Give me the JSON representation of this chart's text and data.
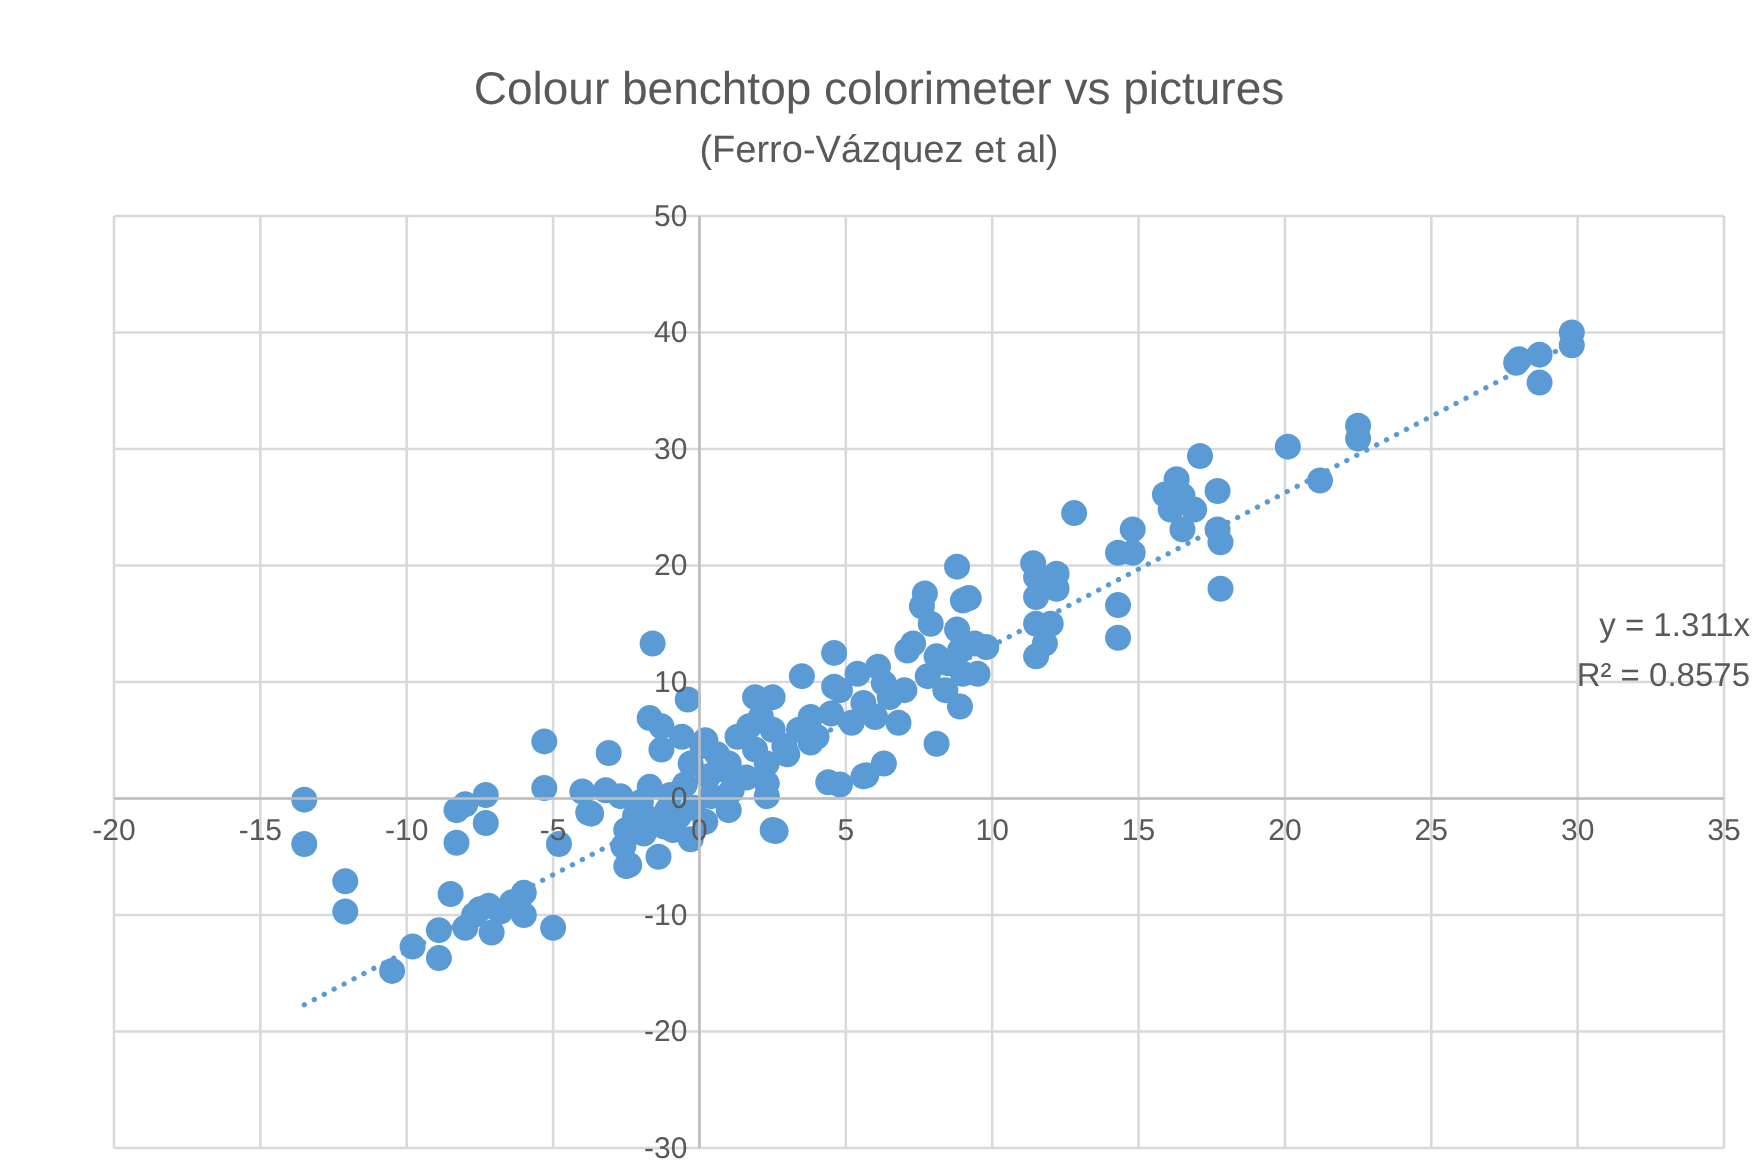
{
  "chart_data": {
    "type": "scatter",
    "title": "Colour benchtop colorimeter vs pictures",
    "subtitle": "(Ferro-Vázquez et al)",
    "xlim": [
      -20,
      35
    ],
    "xticks": [
      -20,
      -15,
      -10,
      -5,
      0,
      5,
      10,
      15,
      20,
      25,
      30,
      35
    ],
    "ylim": [
      -30,
      50
    ],
    "yticks": [
      -30,
      -20,
      -10,
      0,
      10,
      20,
      30,
      40,
      50
    ],
    "grid": true,
    "marker": "circle",
    "annotations": [
      "y = 1.311x",
      "R² = 0.8575"
    ],
    "series": [
      {
        "color": "#5b9bd5",
        "x": [
          -13.5,
          -13.5,
          -12.1,
          -12.1,
          -10.5,
          -9.8,
          -8.9,
          -8.9,
          -8.5,
          -8.3,
          -8.3,
          -8.0,
          -7.3,
          -7.3,
          -7.5,
          -7.1,
          -6.8,
          -6.4,
          -6.0,
          -6.0,
          -8.0,
          -5.0,
          -5.3,
          -5.3,
          -4.8,
          -3.1,
          -4.0,
          -3.2,
          -3.7,
          -2.7,
          -2.5,
          -1.6,
          -0.4,
          -1.7,
          -1.3,
          -0.6,
          -1.3,
          -1.7,
          -1.4,
          -2.6,
          -2.2,
          -1.9,
          -0.9,
          -1.1,
          0.2,
          1.0,
          1.3,
          -7.7,
          -7.2,
          0.1,
          -0.3,
          0.3,
          0.8,
          1.1,
          1.0,
          0.4,
          -0.7,
          -1.2,
          -2.5,
          -3.8,
          1.9,
          2.5,
          2.1,
          2.5,
          1.9,
          2.3,
          2.3,
          2.3,
          2.5,
          2.9,
          3.5,
          3.8,
          3.4,
          4.0,
          4.6,
          4.6,
          4.8,
          4.5,
          5.2,
          4.4,
          4.8,
          5.6,
          6.3,
          5.4,
          6.1,
          6.3,
          5.6,
          6.0,
          6.5,
          6.8,
          7.0,
          7.1,
          7.3,
          7.7,
          7.6,
          7.9,
          8.1,
          7.8,
          8.5,
          8.4,
          8.1,
          8.8,
          9.0,
          8.8,
          8.9,
          9.0,
          8.9,
          9.4,
          9.8,
          9.5,
          9.2,
          -0.2,
          -0.5,
          -2.0,
          -1.5,
          -0.3,
          0.6,
          1.6,
          -1.0,
          0.2,
          -2.4,
          2.6,
          5.7,
          3.0,
          3.8,
          1.7,
          11.4,
          11.5,
          12.2,
          11.5,
          12.0,
          11.5,
          11.5,
          11.8,
          12.8,
          12.2,
          14.3,
          14.8,
          14.8,
          14.3,
          14.3,
          15.9,
          16.3,
          16.1,
          16.5,
          16.9,
          16.5,
          17.1,
          17.7,
          17.7,
          17.8,
          17.8,
          20.1,
          21.2,
          22.5,
          22.5,
          27.9,
          28.0,
          28.7,
          28.7,
          29.8,
          29.8
        ],
        "values": [
          -0.1,
          -3.9,
          -7.1,
          -9.7,
          -14.8,
          -12.7,
          -13.7,
          -11.3,
          -8.2,
          -3.8,
          -1.0,
          -0.5,
          0.3,
          -2.1,
          -9.5,
          -11.5,
          -9.7,
          -8.9,
          -8.1,
          -10.0,
          -11.1,
          -11.1,
          4.9,
          0.9,
          -3.9,
          3.9,
          0.6,
          0.7,
          -1.3,
          0.2,
          -5.8,
          13.3,
          8.5,
          6.9,
          6.2,
          5.3,
          4.2,
          1.0,
          -5.0,
          -4.1,
          -1.5,
          -3.0,
          -2.7,
          -1.0,
          5.0,
          3.0,
          5.3,
          -10.0,
          -9.2,
          4.5,
          3.0,
          1.9,
          2.5,
          0.7,
          -1.0,
          0.2,
          -1.5,
          -2.4,
          -2.7,
          -1.2,
          8.7,
          8.7,
          7.0,
          5.9,
          4.2,
          3.0,
          1.3,
          0.2,
          -2.7,
          4.5,
          10.5,
          7.0,
          5.9,
          5.3,
          12.5,
          9.6,
          9.3,
          7.3,
          6.5,
          1.4,
          1.2,
          1.9,
          3.0,
          10.7,
          11.3,
          9.9,
          8.2,
          7.0,
          8.7,
          6.5,
          9.3,
          12.7,
          13.3,
          17.6,
          16.5,
          15.0,
          12.2,
          10.5,
          11.6,
          9.3,
          4.7,
          19.9,
          17.0,
          14.5,
          12.7,
          10.7,
          7.9,
          13.3,
          13.0,
          10.7,
          17.2,
          -0.8,
          1.2,
          -0.3,
          -1.8,
          -3.5,
          3.8,
          1.8,
          0.3,
          -2.0,
          -5.7,
          -2.8,
          2.0,
          3.8,
          4.8,
          6.2,
          20.2,
          19.0,
          19.3,
          17.3,
          15.0,
          15.0,
          12.2,
          13.3,
          24.5,
          18.0,
          21.1,
          23.1,
          21.1,
          16.6,
          13.8,
          26.1,
          27.4,
          24.8,
          26.0,
          24.8,
          23.1,
          29.4,
          26.4,
          23.1,
          22.0,
          18.0,
          30.2,
          27.3,
          32.0,
          30.9,
          37.4,
          37.7,
          38.1,
          35.7,
          40.0,
          38.9
        ]
      },
      {
        "type": "line",
        "color": "#5b9bd5",
        "line_style": "dotted",
        "marker": "none",
        "x": [
          -13.5,
          29.8
        ],
        "values": [
          -17.7,
          39.1
        ]
      }
    ]
  }
}
